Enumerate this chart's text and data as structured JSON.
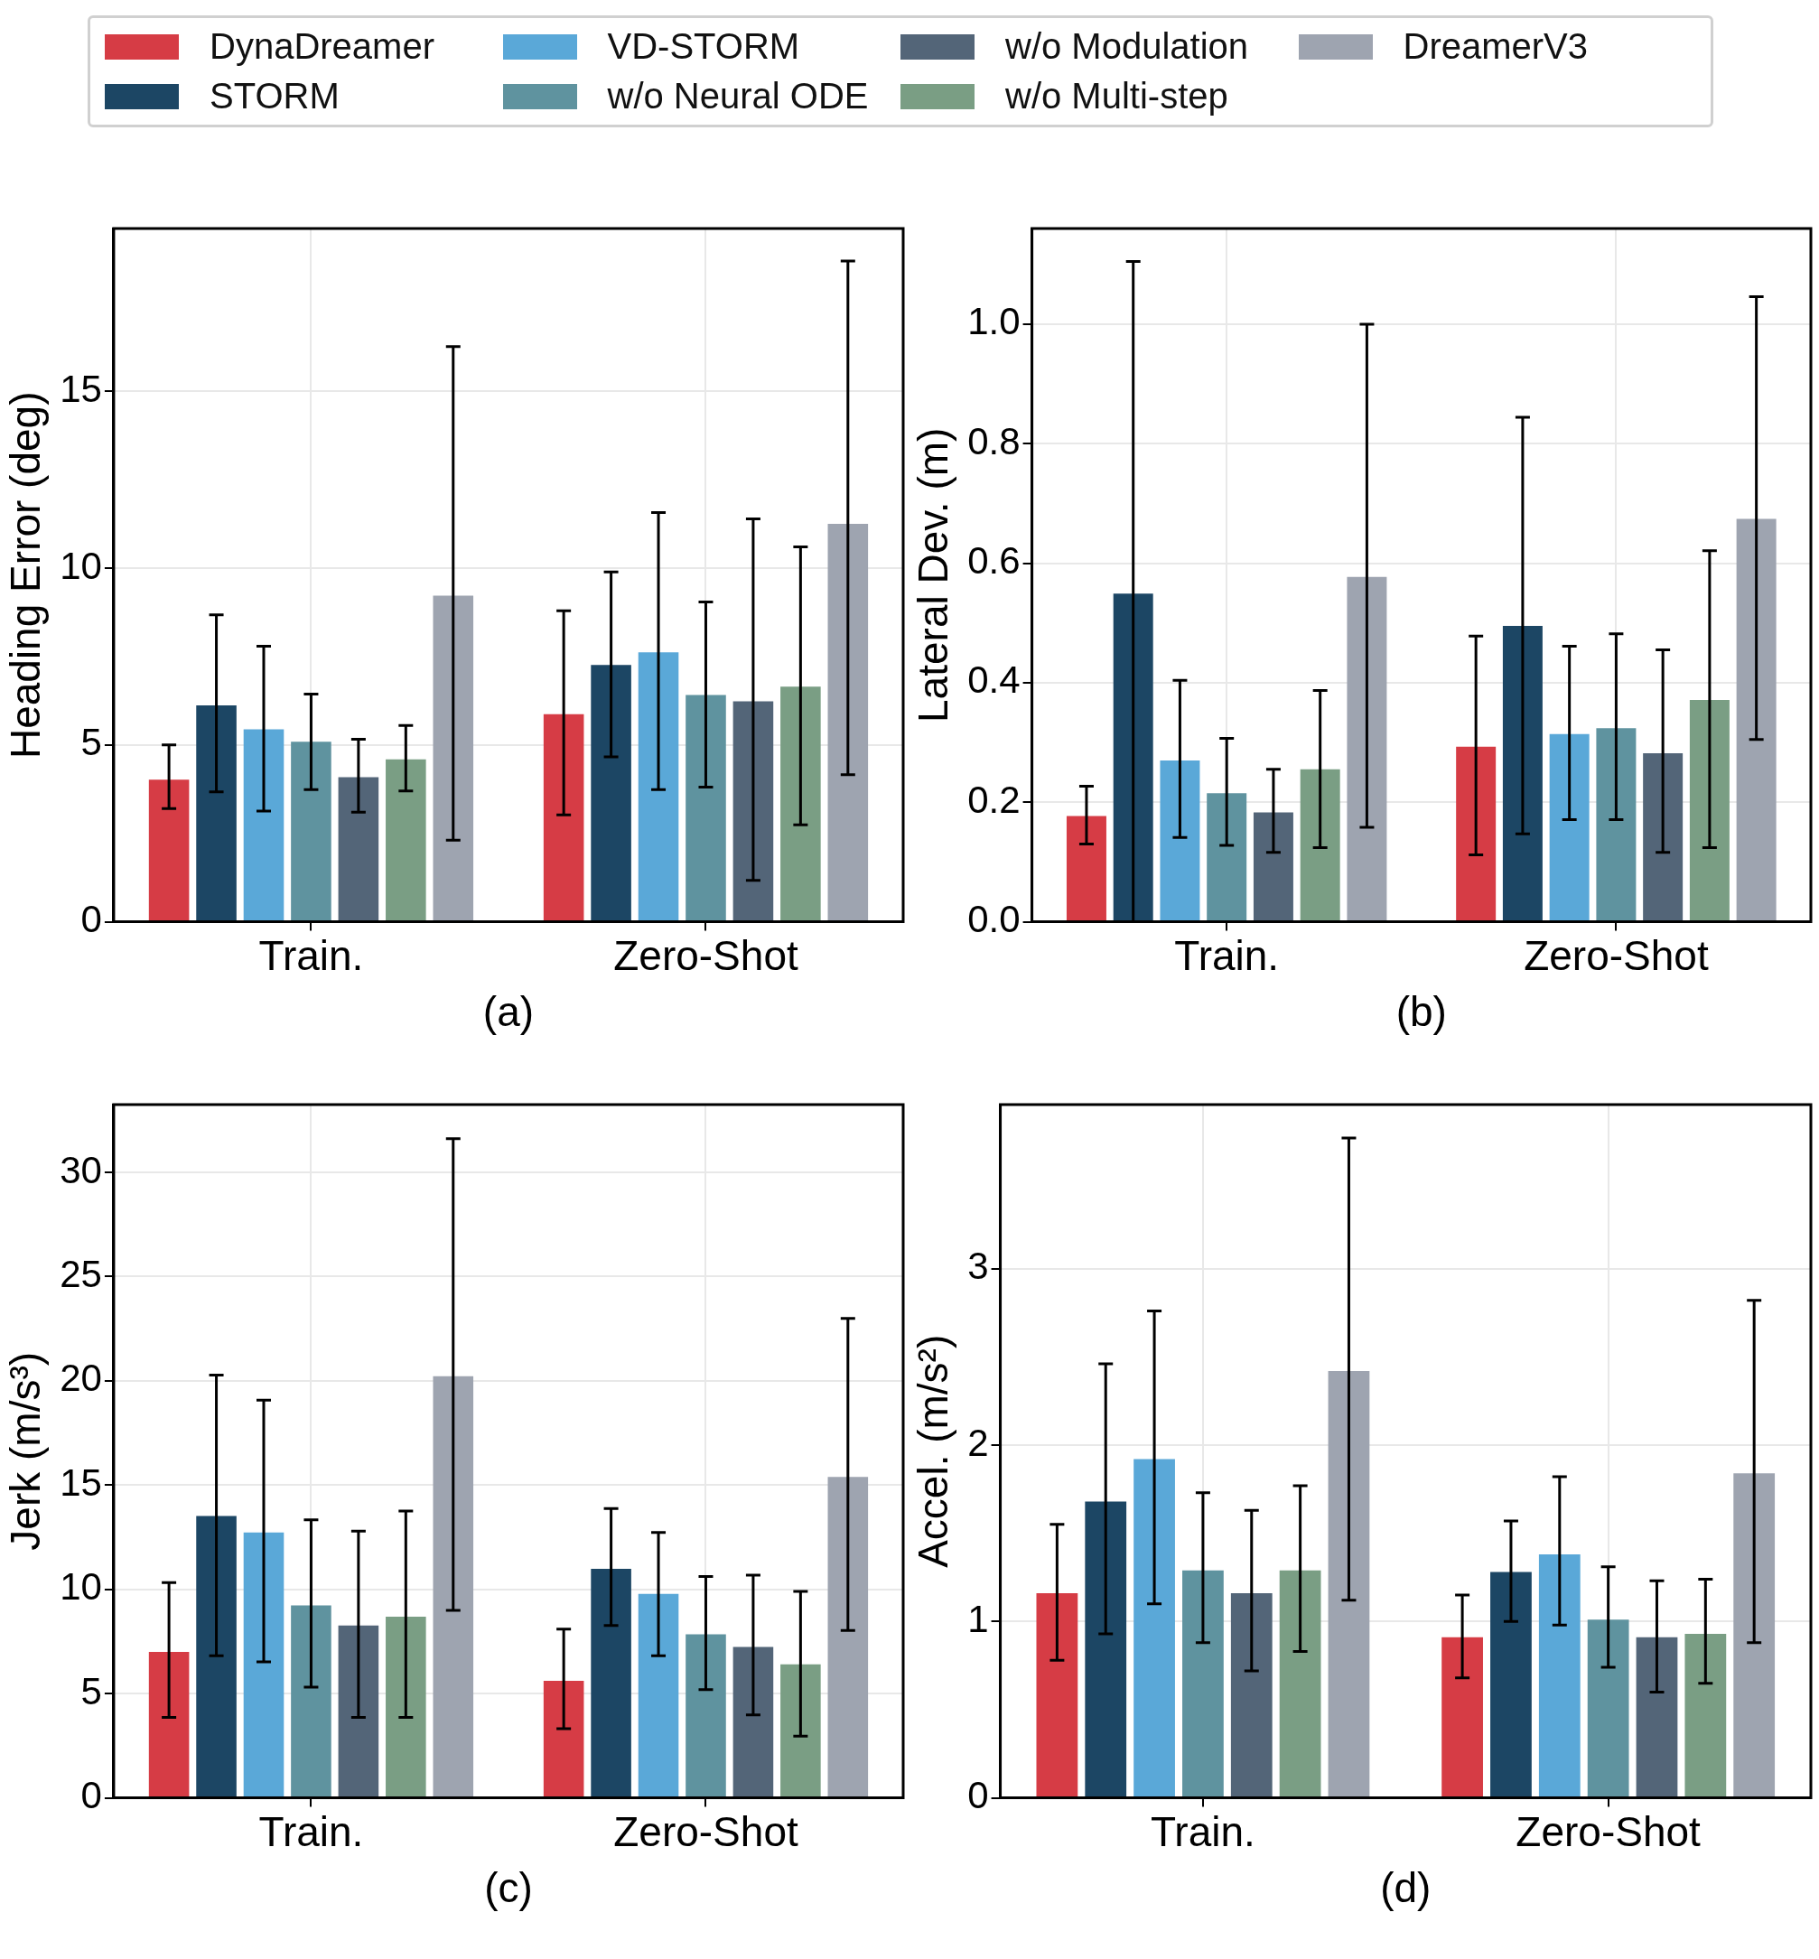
{
  "chart_data": [
    {
      "type": "bar",
      "xlabel": "(a)",
      "ylabel": "Heading Error (deg)",
      "categories": [
        "Train.",
        "Zero-Shot"
      ],
      "ylim": [
        0,
        19.6
      ],
      "yticks": [
        0,
        5,
        10,
        15
      ],
      "grid": true,
      "legend": "top",
      "series": [
        {
          "name": "DynaDreamer",
          "color": "#d63c45",
          "values": [
            4.02,
            5.87
          ],
          "errors": [
            [
              3.2,
              5.0
            ],
            [
              3.02,
              8.79
            ]
          ]
        },
        {
          "name": "STORM",
          "color": "#1c4664",
          "values": [
            6.12,
            7.26
          ],
          "errors": [
            [
              3.67,
              8.68
            ],
            [
              4.66,
              9.89
            ]
          ]
        },
        {
          "name": "VD-STORM",
          "color": "#5aa8d8",
          "values": [
            5.44,
            7.62
          ],
          "errors": [
            [
              3.13,
              7.79
            ],
            [
              3.74,
              11.57
            ]
          ]
        },
        {
          "name": "w/o Neural ODE",
          "color": "#5f939f",
          "values": [
            5.09,
            6.41
          ],
          "errors": [
            [
              3.74,
              6.44
            ],
            [
              3.81,
              9.04
            ]
          ]
        },
        {
          "name": "w/o Modulation",
          "color": "#536578",
          "values": [
            4.09,
            6.23
          ],
          "errors": [
            [
              3.1,
              5.16
            ],
            [
              1.17,
              11.39
            ]
          ]
        },
        {
          "name": "w/o Multi-step",
          "color": "#7a9e84",
          "values": [
            4.59,
            6.65
          ],
          "errors": [
            [
              3.7,
              5.55
            ],
            [
              2.74,
              10.6
            ]
          ]
        },
        {
          "name": "DreamerV3",
          "color": "#9ea4b0",
          "values": [
            9.22,
            11.25
          ],
          "errors": [
            [
              2.31,
              16.26
            ],
            [
              4.16,
              18.68
            ]
          ]
        }
      ]
    },
    {
      "type": "bar",
      "xlabel": "(b)",
      "ylabel": "Lateral Dev. (m)",
      "categories": [
        "Train.",
        "Zero-Shot"
      ],
      "ylim": [
        0,
        1.16
      ],
      "yticks": [
        {
          "value": 0,
          "label": "0.0"
        },
        0.2,
        0.4,
        0.6,
        0.8,
        {
          "value": 1,
          "label": "1.0"
        }
      ],
      "grid": true,
      "series": [
        {
          "color": "#d63c45",
          "values": [
            0.177,
            0.293
          ],
          "errors": [
            [
              0.13,
              0.227
            ],
            [
              0.112,
              0.478
            ]
          ]
        },
        {
          "color": "#1c4664",
          "values": [
            0.549,
            0.495
          ],
          "errors": [
            [
              0.0,
              1.105
            ],
            [
              0.147,
              0.844
            ]
          ]
        },
        {
          "color": "#5aa8d8",
          "values": [
            0.27,
            0.314
          ],
          "errors": [
            [
              0.141,
              0.404
            ],
            [
              0.171,
              0.461
            ]
          ]
        },
        {
          "color": "#5f939f",
          "values": [
            0.215,
            0.324
          ],
          "errors": [
            [
              0.128,
              0.307
            ],
            [
              0.171,
              0.482
            ]
          ]
        },
        {
          "color": "#536578",
          "values": [
            0.183,
            0.282
          ],
          "errors": [
            [
              0.116,
              0.255
            ],
            [
              0.116,
              0.455
            ]
          ]
        },
        {
          "color": "#7a9e84",
          "values": [
            0.255,
            0.371
          ],
          "errors": [
            [
              0.124,
              0.387
            ],
            [
              0.124,
              0.621
            ]
          ]
        },
        {
          "color": "#9ea4b0",
          "values": [
            0.577,
            0.674
          ],
          "errors": [
            [
              0.158,
              1.0
            ],
            [
              0.305,
              1.046
            ]
          ]
        }
      ]
    },
    {
      "type": "bar",
      "xlabel": "(c)",
      "ylabel": "Jerk (m/s³)",
      "categories": [
        "Train.",
        "Zero-Shot"
      ],
      "ylim": [
        0,
        33.25
      ],
      "yticks": [
        0,
        5,
        10,
        15,
        20,
        25,
        30
      ],
      "grid": true,
      "series": [
        {
          "color": "#d63c45",
          "values": [
            7.0,
            5.61
          ],
          "errors": [
            [
              3.86,
              10.32
            ],
            [
              3.32,
              8.09
            ]
          ]
        },
        {
          "color": "#1c4664",
          "values": [
            13.52,
            10.98
          ],
          "errors": [
            [
              6.82,
              20.28
            ],
            [
              8.27,
              13.88
            ]
          ]
        },
        {
          "color": "#5aa8d8",
          "values": [
            12.73,
            9.78
          ],
          "errors": [
            [
              6.52,
              19.07
            ],
            [
              6.82,
              12.73
            ]
          ]
        },
        {
          "color": "#5f939f",
          "values": [
            9.23,
            7.85
          ],
          "errors": [
            [
              5.31,
              13.34
            ],
            [
              5.19,
              10.62
            ]
          ]
        },
        {
          "color": "#536578",
          "values": [
            8.27,
            7.24
          ],
          "errors": [
            [
              3.86,
              12.79
            ],
            [
              3.98,
              10.68
            ]
          ]
        },
        {
          "color": "#7a9e84",
          "values": [
            8.69,
            6.4
          ],
          "errors": [
            [
              3.86,
              13.76
            ],
            [
              2.96,
              9.9
            ]
          ]
        },
        {
          "color": "#9ea4b0",
          "values": [
            20.22,
            15.39
          ],
          "errors": [
            [
              8.99,
              31.62
            ],
            [
              8.03,
              22.99
            ]
          ]
        }
      ]
    },
    {
      "type": "bar",
      "xlabel": "(d)",
      "ylabel": "Accel. (m/s²)",
      "categories": [
        "Train.",
        "Zero-Shot"
      ],
      "ylim": [
        0,
        3.93
      ],
      "yticks": [
        0,
        1,
        2,
        3
      ],
      "grid": true,
      "series": [
        {
          "color": "#d63c45",
          "values": [
            1.16,
            0.91
          ],
          "errors": [
            [
              0.78,
              1.55
            ],
            [
              0.68,
              1.15
            ]
          ]
        },
        {
          "color": "#1c4664",
          "values": [
            1.68,
            1.28
          ],
          "errors": [
            [
              0.93,
              2.46
            ],
            [
              1.0,
              1.57
            ]
          ]
        },
        {
          "color": "#5aa8d8",
          "values": [
            1.92,
            1.38
          ],
          "errors": [
            [
              1.1,
              2.76
            ],
            [
              0.98,
              1.82
            ]
          ]
        },
        {
          "color": "#5f939f",
          "values": [
            1.29,
            1.01
          ],
          "errors": [
            [
              0.88,
              1.73
            ],
            [
              0.74,
              1.31
            ]
          ]
        },
        {
          "color": "#536578",
          "values": [
            1.16,
            0.91
          ],
          "errors": [
            [
              0.72,
              1.63
            ],
            [
              0.6,
              1.23
            ]
          ]
        },
        {
          "color": "#7a9e84",
          "values": [
            1.29,
            0.93
          ],
          "errors": [
            [
              0.83,
              1.77
            ],
            [
              0.65,
              1.24
            ]
          ]
        },
        {
          "color": "#9ea4b0",
          "values": [
            2.42,
            1.84
          ],
          "errors": [
            [
              1.12,
              3.74
            ],
            [
              0.88,
              2.82
            ]
          ]
        }
      ]
    }
  ]
}
